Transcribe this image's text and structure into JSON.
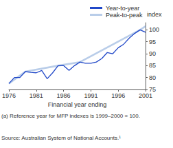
{
  "chart_data": {
    "type": "line",
    "x_label": "Financial year ending",
    "y_label": "index",
    "notes": [
      "(a) Reference year for MFP indexes is 1999–2000 = 100.",
      "Source: Australian System of National Accounts.¹"
    ],
    "series": [
      {
        "name": "Year-to-year",
        "color": "#2148c8",
        "line_style": "solid",
        "x": [
          1976,
          1977,
          1978,
          1979,
          1980,
          1981,
          1982,
          1983,
          1984,
          1985,
          1986,
          1987,
          1988,
          1989,
          1990,
          1991,
          1992,
          1993,
          1994,
          1995,
          1996,
          1997,
          1998,
          1999,
          2000,
          2001
        ],
        "values": [
          77.5,
          80,
          80,
          82.5,
          82.2,
          82,
          83,
          79.5,
          82,
          85,
          85,
          83,
          85,
          86.5,
          86,
          86,
          86.5,
          88,
          90.5,
          90,
          92.5,
          94,
          96.5,
          98.5,
          100,
          99
        ]
      },
      {
        "name": "Peak-to-peak",
        "color": "#b9cde9",
        "line_style": "solid",
        "x": [
          1976,
          1979,
          1985,
          1989,
          2000,
          2001
        ],
        "values": [
          77.5,
          82.5,
          85,
          86.5,
          100,
          101.5
        ]
      }
    ],
    "xlim": [
      1976,
      2001
    ],
    "xticks": [
      1976,
      1981,
      1986,
      1991,
      1996,
      2001
    ],
    "ylim": [
      75,
      103
    ],
    "yticks": [
      75,
      80,
      85,
      90,
      95,
      100
    ],
    "grid": false,
    "legend": "upper center"
  }
}
